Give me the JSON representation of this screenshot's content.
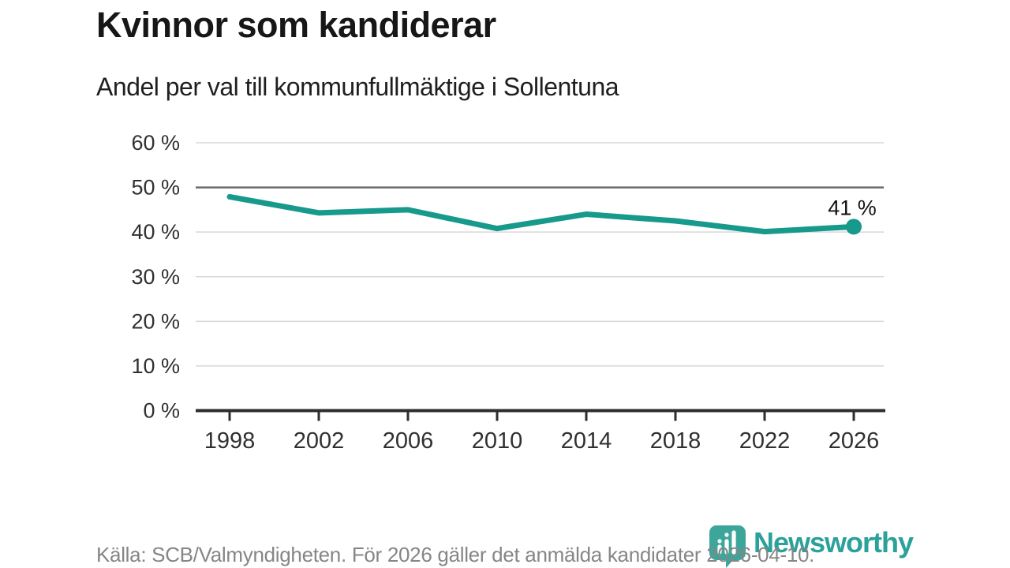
{
  "chart_data": {
    "type": "line",
    "title": "Kvinnor som kandiderar",
    "subtitle": "Andel per val till kommunfullmäktige i Sollentuna",
    "x": [
      1998,
      2002,
      2006,
      2010,
      2014,
      2018,
      2022,
      2026
    ],
    "values": [
      47.9,
      44.3,
      45.0,
      40.8,
      44.0,
      42.5,
      40.1,
      41.2
    ],
    "end_label": "41 %",
    "xlabel": "",
    "ylabel": "",
    "ylim": [
      0,
      60
    ],
    "y_ticks": [
      0,
      10,
      20,
      30,
      40,
      50,
      60
    ],
    "y_tick_suffix": " %",
    "reference_line": 50,
    "grid": "horizontal-only",
    "legend": "none",
    "marker": "last-point-dot"
  },
  "footer": {
    "source": "Källa: SCB/Valmyndigheten. För 2026 gäller det anmälda kandidater 2026-04-10.",
    "logo_text": "Newsworthy"
  },
  "colors": {
    "accent": "#17998c",
    "title_text": "#171717",
    "subtitle_text": "#1f1f1f",
    "axis_text": "#303030",
    "grid_line": "#d8d8d8",
    "reference_line": "#6a6a6a",
    "axis_line": "#2d2d2d",
    "source_text": "#868686",
    "logo_icon": "#3da69b",
    "logo_text": "#2ba199",
    "value_label": "#111111"
  }
}
